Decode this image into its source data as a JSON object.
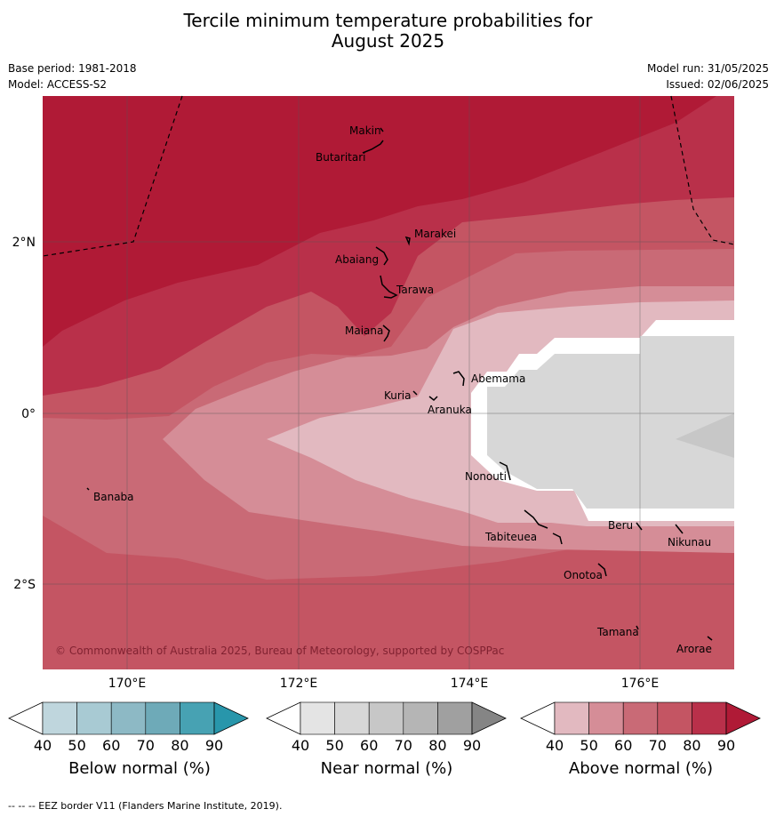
{
  "title_line1": "Tercile minimum temperature probabilities for",
  "title_line2": "August 2025",
  "base_period": "Base period: 1981-2018",
  "model": "Model: ACCESS-S2",
  "model_run": "Model run: 31/05/2025",
  "issued": "Issued: 02/06/2025",
  "copyright": "© Commonwealth of Australia 2025, Bureau of Meteorology, supported by COSPPac",
  "footnote": "-- -- -- EEZ border V11 (Flanders Marine Institute, 2019).",
  "lat_labels": [
    "2°N",
    "0°",
    "2°S"
  ],
  "lon_labels": [
    "170°E",
    "172°E",
    "174°E",
    "176°E"
  ],
  "places": [
    {
      "name": "Makin"
    },
    {
      "name": "Butaritari"
    },
    {
      "name": "Marakei"
    },
    {
      "name": "Abaiang"
    },
    {
      "name": "Tarawa"
    },
    {
      "name": "Maiana"
    },
    {
      "name": "Abemama"
    },
    {
      "name": "Kuria"
    },
    {
      "name": "Aranuka"
    },
    {
      "name": "Nonouti"
    },
    {
      "name": "Banaba"
    },
    {
      "name": "Tabiteuea"
    },
    {
      "name": "Beru"
    },
    {
      "name": "Nikunau"
    },
    {
      "name": "Onotoa"
    },
    {
      "name": "Tamana"
    },
    {
      "name": "Arorae"
    }
  ],
  "colorbars": [
    {
      "name": "Below normal (%)",
      "ticks": [
        "40",
        "50",
        "60",
        "70",
        "80",
        "90"
      ],
      "colors": [
        "#bfd6dd",
        "#a8cad3",
        "#8db9c5",
        "#6eaab8",
        "#47a2b3",
        "#2896ab"
      ]
    },
    {
      "name": "Near normal (%)",
      "ticks": [
        "40",
        "50",
        "60",
        "70",
        "80",
        "90"
      ],
      "colors": [
        "#e4e4e4",
        "#d7d7d7",
        "#c7c7c7",
        "#b5b5b5",
        "#a0a0a0",
        "#858585"
      ]
    },
    {
      "name": "Above normal (%)",
      "ticks": [
        "40",
        "50",
        "60",
        "70",
        "80",
        "90"
      ],
      "colors": [
        "#e2b9c0",
        "#d58d97",
        "#c96a76",
        "#c45563",
        "#b9304a",
        "#b01a36"
      ]
    }
  ]
}
